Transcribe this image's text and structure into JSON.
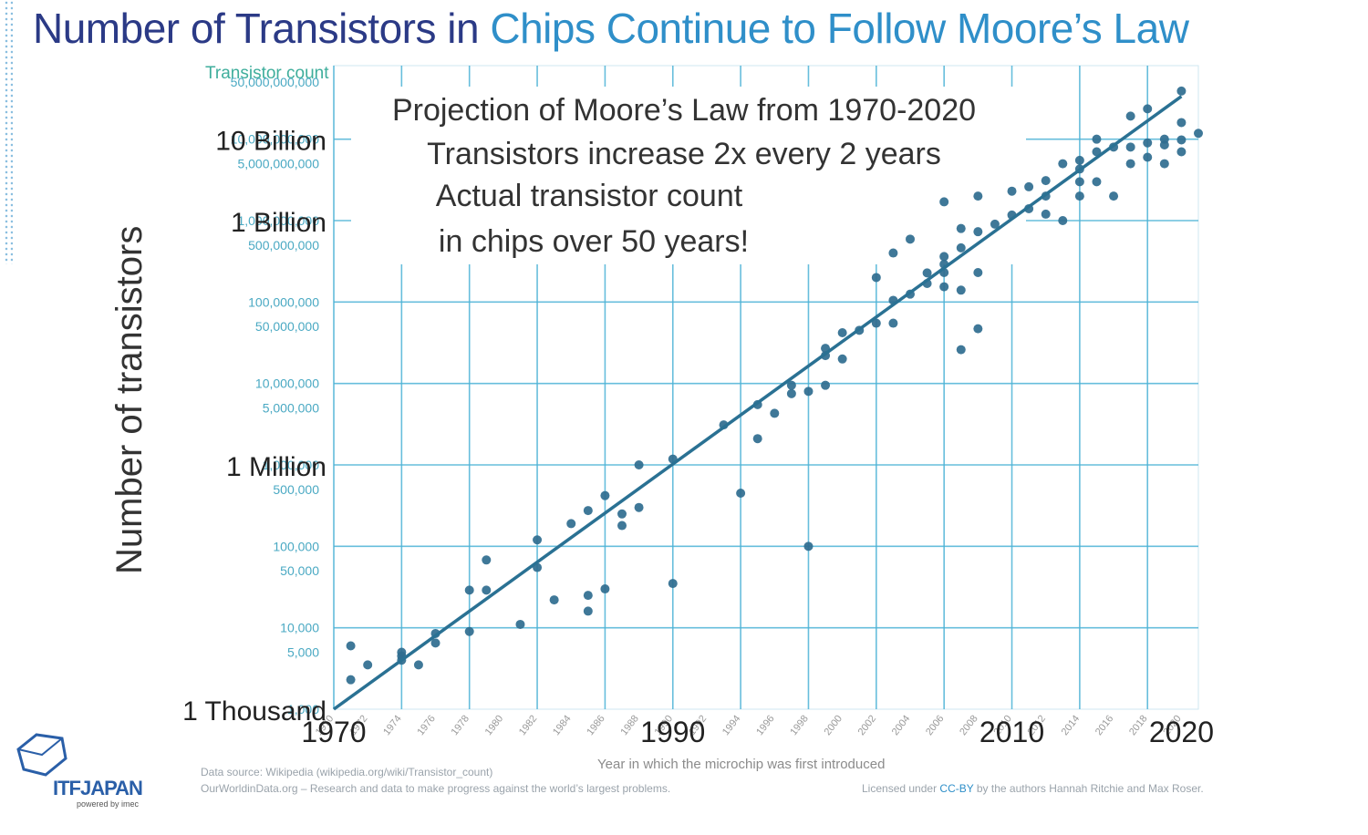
{
  "title_part1": "Number of Transistors in",
  "title_part2": "Chips Continue to Follow Moore’s Law",
  "y_axis_title": "Number of transistors",
  "x_axis_title": "Year in which the microchip was first introduced",
  "source_line1": "Data source: Wikipedia (wikipedia.org/wiki/Transistor_count)",
  "source_line2": "OurWorldinData.org – Research and data to make progress against the world’s largest problems.",
  "license_prefix": "Licensed under",
  "license_link": "CC-BY",
  "license_suffix": "by the authors Hannah Ritchie and Max Roser.",
  "logo_text": "ITFJAPAN",
  "logo_sub": "powered by imec",
  "colors": {
    "title_dark": "#2b3a86",
    "title_light": "#2f8fc9",
    "grid": "#4db3d6",
    "points": "#2f6d8f",
    "trend": "#2a7193",
    "tick_text": "#4aa9c3"
  },
  "chart_data": {
    "type": "scatter",
    "y_scale": "log",
    "xlim": [
      1970,
      2021
    ],
    "ylim": [
      1000,
      80000000000
    ],
    "grid": true,
    "y_axis_small_title": "Transistor count",
    "y_ticks_small": [
      "50,000,000,000",
      "10,000,000,000",
      "5,000,000,000",
      "1,000,000,000",
      "500,000,000",
      "100,000,000",
      "50,000,000",
      "10,000,000",
      "5,000,000",
      "1,000,000",
      "500,000",
      "100,000",
      "50,000",
      "10,000",
      "5,000",
      "1,000"
    ],
    "y_ticks_small_values": [
      50000000000,
      10000000000,
      5000000000,
      1000000000,
      500000000,
      100000000,
      50000000,
      10000000,
      5000000,
      1000000,
      500000,
      100000,
      50000,
      10000,
      5000,
      1000
    ],
    "y_ticks_big": [
      {
        "label": "10 Billion",
        "value": 10000000000
      },
      {
        "label": "1 Billion",
        "value": 1000000000
      },
      {
        "label": "1 Million",
        "value": 1000000
      },
      {
        "label": "1 Thousand",
        "value": 1000
      }
    ],
    "x_ticks_small": [
      "1970",
      "1972",
      "1974",
      "1976",
      "1978",
      "1980",
      "1982",
      "1984",
      "1986",
      "1988",
      "1990",
      "1992",
      "1994",
      "1996",
      "1998",
      "2000",
      "2002",
      "2004",
      "2006",
      "2008",
      "2010",
      "2012",
      "2014",
      "2016",
      "2018",
      "2020"
    ],
    "x_ticks_big": [
      "1970",
      "1990",
      "2010",
      "2020"
    ],
    "annotations": [
      "Projection of Moore’s Law from 1970-2020",
      "Transistors increase 2x every 2 years",
      "Actual transistor count",
      "in chips over 50 years!"
    ],
    "trend": {
      "x": [
        1970,
        2020
      ],
      "y": [
        1000,
        33554432000
      ]
    },
    "points": [
      [
        1971,
        2300
      ],
      [
        1971,
        6000
      ],
      [
        1972,
        3500
      ],
      [
        1974,
        4500
      ],
      [
        1974,
        5000
      ],
      [
        1974,
        4000
      ],
      [
        1975,
        3500
      ],
      [
        1976,
        8500
      ],
      [
        1976,
        6500
      ],
      [
        1978,
        29000
      ],
      [
        1978,
        9000
      ],
      [
        1979,
        68000
      ],
      [
        1979,
        29000
      ],
      [
        1981,
        11000
      ],
      [
        1982,
        120000
      ],
      [
        1982,
        55000
      ],
      [
        1983,
        22000
      ],
      [
        1984,
        190000
      ],
      [
        1985,
        275000
      ],
      [
        1985,
        25000
      ],
      [
        1985,
        16000
      ],
      [
        1986,
        30000
      ],
      [
        1986,
        420000
      ],
      [
        1987,
        250000
      ],
      [
        1987,
        180000
      ],
      [
        1988,
        1000000
      ],
      [
        1988,
        300000
      ],
      [
        1990,
        1180000
      ],
      [
        1990,
        35000
      ],
      [
        1993,
        3100000
      ],
      [
        1994,
        450000
      ],
      [
        1995,
        5500000
      ],
      [
        1995,
        2100000
      ],
      [
        1996,
        4300000
      ],
      [
        1997,
        7500000
      ],
      [
        1997,
        9500000
      ],
      [
        1998,
        8000000
      ],
      [
        1998,
        100000
      ],
      [
        1999,
        9500000
      ],
      [
        1999,
        22000000
      ],
      [
        1999,
        27000000
      ],
      [
        2000,
        42000000
      ],
      [
        2000,
        20000000
      ],
      [
        2001,
        45000000
      ],
      [
        2002,
        55000000
      ],
      [
        2002,
        200000000
      ],
      [
        2003,
        55000000
      ],
      [
        2003,
        105000000
      ],
      [
        2003,
        400000000
      ],
      [
        2004,
        592000000
      ],
      [
        2004,
        125000000
      ],
      [
        2005,
        228000000
      ],
      [
        2005,
        169000000
      ],
      [
        2006,
        291000000
      ],
      [
        2006,
        154000000
      ],
      [
        2006,
        230000000
      ],
      [
        2006,
        1700000000
      ],
      [
        2006,
        362000000
      ],
      [
        2007,
        800000000
      ],
      [
        2007,
        26000000
      ],
      [
        2007,
        140000000
      ],
      [
        2007,
        463000000
      ],
      [
        2008,
        2000000000
      ],
      [
        2008,
        230000000
      ],
      [
        2008,
        731000000
      ],
      [
        2008,
        47000000
      ],
      [
        2009,
        904000000
      ],
      [
        2010,
        1170000000
      ],
      [
        2010,
        2300000000
      ],
      [
        2011,
        2600000000
      ],
      [
        2011,
        1400000000
      ],
      [
        2012,
        3100000000
      ],
      [
        2012,
        1200000000
      ],
      [
        2012,
        2000000000
      ],
      [
        2013,
        5000000000
      ],
      [
        2013,
        1000000000
      ],
      [
        2014,
        5500000000
      ],
      [
        2014,
        4300000000
      ],
      [
        2014,
        2000000000
      ],
      [
        2014,
        3000000000
      ],
      [
        2015,
        10000000000
      ],
      [
        2015,
        7000000000
      ],
      [
        2015,
        3000000000
      ],
      [
        2016,
        8000000000
      ],
      [
        2016,
        2000000000
      ],
      [
        2017,
        19200000000
      ],
      [
        2017,
        8000000000
      ],
      [
        2017,
        5000000000
      ],
      [
        2018,
        9000000000
      ],
      [
        2018,
        6000000000
      ],
      [
        2018,
        23600000000
      ],
      [
        2019,
        10000000000
      ],
      [
        2019,
        8500000000
      ],
      [
        2019,
        5000000000
      ],
      [
        2020,
        39000000000
      ],
      [
        2020,
        9800000000
      ],
      [
        2020,
        16000000000
      ],
      [
        2020,
        7000000000
      ],
      [
        2021,
        11800000000
      ]
    ]
  }
}
